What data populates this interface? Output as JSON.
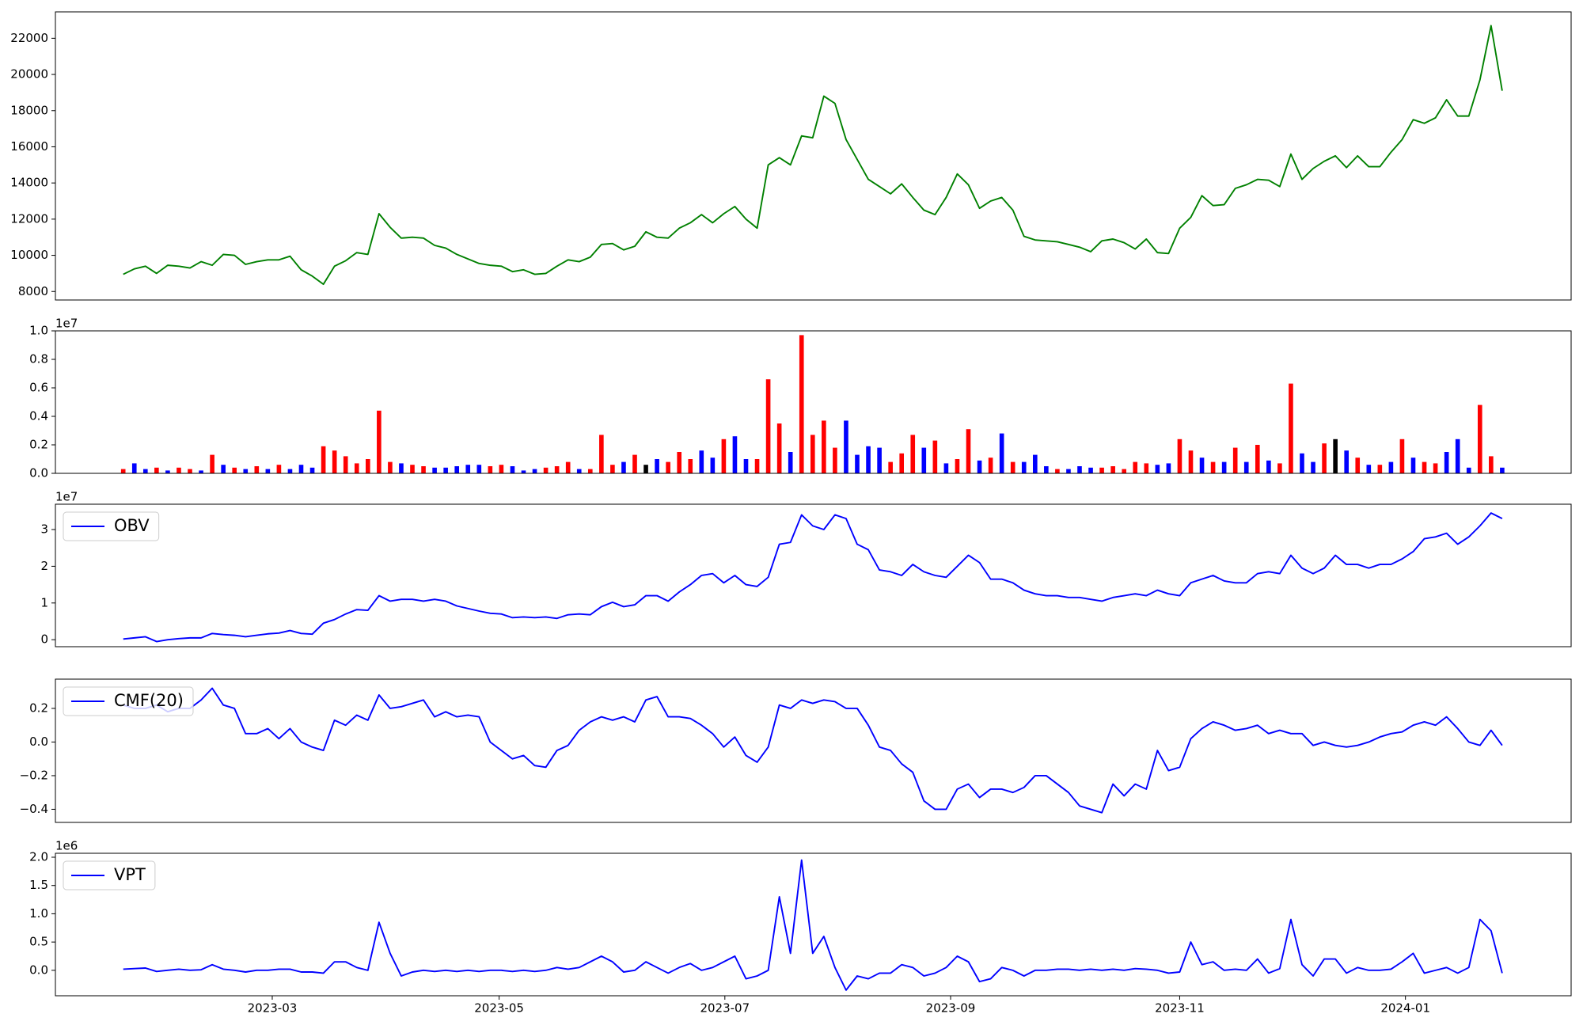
{
  "chart_data": [
    {
      "type": "line",
      "color": "green",
      "xlim": [
        -6.1,
        130.2
      ],
      "ylim": [
        7530,
        23460
      ],
      "yticks": [
        8000,
        10000,
        12000,
        14000,
        16000,
        18000,
        20000,
        22000
      ],
      "values": [
        8950,
        9250,
        9400,
        9000,
        9450,
        9400,
        9300,
        9650,
        9450,
        10050,
        10000,
        9500,
        9650,
        9750,
        9750,
        9950,
        9200,
        8850,
        8400,
        9400,
        9700,
        10150,
        10050,
        12300,
        11550,
        10950,
        11000,
        10950,
        10550,
        10400,
        10050,
        9800,
        9550,
        9450,
        9400,
        9100,
        9200,
        8950,
        9000,
        9400,
        9750,
        9650,
        9900,
        10600,
        10650,
        10300,
        10500,
        11300,
        11000,
        10950,
        11500,
        11800,
        12250,
        11800,
        12300,
        12700,
        12000,
        11500,
        15000,
        15400,
        15000,
        16600,
        16500,
        18800,
        18400,
        16400,
        15300,
        14200,
        13800,
        13400,
        13950,
        13200,
        12500,
        12250,
        13200,
        14500,
        13900,
        12600,
        13000,
        13200,
        12500,
        11050,
        10850,
        10800,
        10750,
        10600,
        10450,
        10200,
        10800,
        10900,
        10700,
        10350,
        10900,
        10150,
        10100,
        11500,
        12100,
        13300,
        12750,
        12800,
        13700,
        13900,
        14200,
        14150,
        13800,
        15600,
        14200,
        14800,
        15200,
        15500,
        14850,
        15500,
        14900,
        14900,
        15700,
        16400,
        17500,
        17300,
        17600,
        18600,
        17700,
        17700,
        19700,
        22700,
        19100
      ]
    },
    {
      "type": "bar",
      "offset_label": "1e7",
      "xlim": [
        -6.1,
        130.2
      ],
      "ylim": [
        0,
        1.0
      ],
      "yticks": [
        {
          "value": 0,
          "label": "0.0"
        },
        {
          "value": 0.2,
          "label": "0.2"
        },
        {
          "value": 0.4,
          "label": "0.4"
        },
        {
          "value": 0.6,
          "label": "0.6"
        },
        {
          "value": 0.8,
          "label": "0.8"
        },
        {
          "value": 1.0,
          "label": "1.0"
        }
      ],
      "values": [
        0.03,
        0.07,
        0.03,
        0.04,
        0.02,
        0.04,
        0.03,
        0.02,
        0.13,
        0.06,
        0.04,
        0.03,
        0.05,
        0.03,
        0.06,
        0.03,
        0.06,
        0.04,
        0.19,
        0.16,
        0.12,
        0.07,
        0.1,
        0.44,
        0.08,
        0.07,
        0.06,
        0.05,
        0.04,
        0.04,
        0.05,
        0.06,
        0.06,
        0.05,
        0.06,
        0.05,
        0.02,
        0.03,
        0.04,
        0.05,
        0.08,
        0.03,
        0.03,
        0.27,
        0.06,
        0.08,
        0.13,
        0.06,
        0.1,
        0.08,
        0.15,
        0.1,
        0.16,
        0.11,
        0.24,
        0.26,
        0.1,
        0.1,
        0.66,
        0.35,
        0.15,
        0.97,
        0.27,
        0.37,
        0.18,
        0.37,
        0.13,
        0.19,
        0.18,
        0.08,
        0.14,
        0.27,
        0.18,
        0.23,
        0.07,
        0.1,
        0.31,
        0.09,
        0.11,
        0.28,
        0.08,
        0.08,
        0.13,
        0.05,
        0.03,
        0.03,
        0.05,
        0.04,
        0.04,
        0.05,
        0.03,
        0.08,
        0.07,
        0.06,
        0.07,
        0.24,
        0.16,
        0.11,
        0.08,
        0.08,
        0.18,
        0.08,
        0.2,
        0.09,
        0.07,
        0.63,
        0.14,
        0.08,
        0.21,
        0.24,
        0.16,
        0.11,
        0.06,
        0.06,
        0.08,
        0.24,
        0.11,
        0.08,
        0.07,
        0.15,
        0.24,
        0.04,
        0.48,
        0.12,
        0.04
      ],
      "colors": [
        "red",
        "blue",
        "blue",
        "red",
        "blue",
        "red",
        "red",
        "blue",
        "red",
        "blue",
        "red",
        "blue",
        "red",
        "blue",
        "red",
        "blue",
        "blue",
        "blue",
        "red",
        "red",
        "red",
        "red",
        "red",
        "red",
        "red",
        "blue",
        "red",
        "red",
        "blue",
        "blue",
        "blue",
        "blue",
        "blue",
        "red",
        "red",
        "blue",
        "blue",
        "blue",
        "red",
        "red",
        "red",
        "blue",
        "red",
        "red",
        "red",
        "blue",
        "red",
        "black",
        "blue",
        "red",
        "red",
        "red",
        "blue",
        "blue",
        "red",
        "blue",
        "blue",
        "red",
        "red",
        "red",
        "blue",
        "red",
        "red",
        "red",
        "red",
        "blue",
        "blue",
        "blue",
        "blue",
        "red",
        "red",
        "red",
        "blue",
        "red",
        "blue",
        "red",
        "red",
        "blue",
        "red",
        "blue",
        "red",
        "blue",
        "blue",
        "blue",
        "red",
        "blue",
        "blue",
        "blue",
        "red",
        "red",
        "red",
        "red",
        "red",
        "blue",
        "blue",
        "red",
        "red",
        "blue",
        "red",
        "blue",
        "red",
        "blue",
        "red",
        "blue",
        "red",
        "red",
        "blue",
        "blue",
        "red",
        "black",
        "blue",
        "red",
        "blue",
        "red",
        "blue",
        "red",
        "blue",
        "red",
        "red",
        "blue",
        "blue",
        "blue",
        "red",
        "red",
        "blue"
      ]
    },
    {
      "type": "line",
      "offset_label": "1e7",
      "legend": "upper left",
      "xlim": [
        -6.1,
        130.2
      ],
      "ylim": [
        -0.19,
        3.69
      ],
      "yticks": [
        0,
        1,
        2,
        3
      ],
      "series": [
        {
          "name": "OBV",
          "color": "blue",
          "values": [
            0.02,
            0.05,
            0.08,
            -0.05,
            0.0,
            0.03,
            0.05,
            0.05,
            0.17,
            0.14,
            0.12,
            0.08,
            0.12,
            0.16,
            0.18,
            0.25,
            0.17,
            0.15,
            0.45,
            0.55,
            0.7,
            0.82,
            0.8,
            1.2,
            1.05,
            1.1,
            1.1,
            1.05,
            1.1,
            1.05,
            0.92,
            0.85,
            0.78,
            0.72,
            0.7,
            0.6,
            0.62,
            0.6,
            0.62,
            0.58,
            0.68,
            0.7,
            0.68,
            0.9,
            1.02,
            0.9,
            0.95,
            1.2,
            1.2,
            1.05,
            1.3,
            1.5,
            1.75,
            1.8,
            1.55,
            1.75,
            1.5,
            1.45,
            1.7,
            2.6,
            2.65,
            3.4,
            3.1,
            3.0,
            3.4,
            3.3,
            2.6,
            2.45,
            1.9,
            1.85,
            1.75,
            2.05,
            1.85,
            1.75,
            1.7,
            2.0,
            2.3,
            2.1,
            1.65,
            1.65,
            1.55,
            1.35,
            1.25,
            1.2,
            1.2,
            1.15,
            1.15,
            1.1,
            1.05,
            1.15,
            1.2,
            1.25,
            1.2,
            1.35,
            1.25,
            1.2,
            1.55,
            1.65,
            1.75,
            1.6,
            1.55,
            1.55,
            1.8,
            1.85,
            1.8,
            2.3,
            1.95,
            1.8,
            1.95,
            2.3,
            2.05,
            2.05,
            1.95,
            2.05,
            2.05,
            2.2,
            2.4,
            2.75,
            2.8,
            2.9,
            2.6,
            2.8,
            3.1,
            3.45,
            3.3
          ]
        }
      ]
    },
    {
      "type": "line",
      "legend": "upper left",
      "xlim": [
        -6.1,
        130.2
      ],
      "ylim": [
        -0.478,
        0.374
      ],
      "yticks": [
        {
          "value": -0.4,
          "label": "−0.4"
        },
        {
          "value": -0.2,
          "label": "−0.2"
        },
        {
          "value": 0,
          "label": "0.0"
        },
        0.2
      ],
      "series": [
        {
          "name": "CMF(20)",
          "color": "blue",
          "values": [
            0.22,
            0.2,
            0.2,
            0.22,
            0.18,
            0.2,
            0.2,
            0.25,
            0.32,
            0.22,
            0.2,
            0.05,
            0.05,
            0.08,
            0.02,
            0.08,
            0.0,
            -0.03,
            -0.05,
            0.13,
            0.1,
            0.16,
            0.13,
            0.28,
            0.2,
            0.21,
            0.23,
            0.25,
            0.15,
            0.18,
            0.15,
            0.16,
            0.15,
            0.0,
            -0.05,
            -0.1,
            -0.08,
            -0.14,
            -0.15,
            -0.05,
            -0.02,
            0.07,
            0.12,
            0.15,
            0.13,
            0.15,
            0.12,
            0.25,
            0.27,
            0.15,
            0.15,
            0.14,
            0.1,
            0.05,
            -0.03,
            0.03,
            -0.08,
            -0.12,
            -0.03,
            0.22,
            0.2,
            0.25,
            0.23,
            0.25,
            0.24,
            0.2,
            0.2,
            0.1,
            -0.03,
            -0.05,
            -0.13,
            -0.18,
            -0.35,
            -0.4,
            -0.4,
            -0.28,
            -0.25,
            -0.33,
            -0.28,
            -0.28,
            -0.3,
            -0.27,
            -0.2,
            -0.2,
            -0.25,
            -0.3,
            -0.38,
            -0.4,
            -0.42,
            -0.25,
            -0.32,
            -0.25,
            -0.28,
            -0.05,
            -0.17,
            -0.15,
            0.02,
            0.08,
            0.12,
            0.1,
            0.07,
            0.08,
            0.1,
            0.05,
            0.07,
            0.05,
            0.05,
            -0.02,
            0.0,
            -0.02,
            -0.03,
            -0.02,
            0.0,
            0.03,
            0.05,
            0.06,
            0.1,
            0.12,
            0.1,
            0.15,
            0.08,
            0.0,
            -0.02,
            0.07,
            -0.02
          ]
        }
      ]
    },
    {
      "type": "line",
      "offset_label": "1e6",
      "legend": "upper left",
      "xlim": [
        -6.1,
        130.2
      ],
      "ylim": [
        -0.45,
        2.07
      ],
      "yticks": [
        {
          "value": 0,
          "label": "0.0"
        },
        {
          "value": 0.5,
          "label": "0.5"
        },
        {
          "value": 1.0,
          "label": "1.0"
        },
        {
          "value": 1.5,
          "label": "1.5"
        },
        {
          "value": 2.0,
          "label": "2.0"
        }
      ],
      "xticks": [
        {
          "value": 13.4,
          "label": "2023-03"
        },
        {
          "value": 33.8,
          "label": "2023-05"
        },
        {
          "value": 54.1,
          "label": "2023-07"
        },
        {
          "value": 74.4,
          "label": "2023-09"
        },
        {
          "value": 95.0,
          "label": "2023-11"
        },
        {
          "value": 115.3,
          "label": "2024-01"
        }
      ],
      "series": [
        {
          "name": "VPT",
          "color": "blue",
          "values": [
            0.02,
            0.03,
            0.04,
            -0.02,
            0.0,
            0.02,
            0.0,
            0.01,
            0.1,
            0.02,
            0.0,
            -0.03,
            0.0,
            0.0,
            0.02,
            0.02,
            -0.03,
            -0.03,
            -0.05,
            0.15,
            0.15,
            0.05,
            0.0,
            0.85,
            0.3,
            -0.1,
            -0.03,
            0.0,
            -0.02,
            0.0,
            -0.02,
            0.0,
            -0.02,
            0.0,
            0.0,
            -0.02,
            0.0,
            -0.02,
            0.0,
            0.05,
            0.02,
            0.05,
            0.15,
            0.25,
            0.15,
            -0.03,
            0.0,
            0.15,
            0.05,
            -0.05,
            0.05,
            0.12,
            0.0,
            0.05,
            0.15,
            0.25,
            -0.15,
            -0.1,
            0.0,
            1.3,
            0.3,
            1.95,
            0.3,
            0.6,
            0.05,
            -0.35,
            -0.1,
            -0.15,
            -0.05,
            -0.05,
            0.1,
            0.05,
            -0.1,
            -0.05,
            0.05,
            0.25,
            0.15,
            -0.2,
            -0.15,
            0.05,
            0.0,
            -0.1,
            0.0,
            0.0,
            0.02,
            0.02,
            0.0,
            0.02,
            0.0,
            0.02,
            0.0,
            0.03,
            0.02,
            0.0,
            -0.05,
            -0.03,
            0.5,
            0.1,
            0.15,
            0.0,
            0.02,
            0.0,
            0.2,
            -0.05,
            0.03,
            0.9,
            0.1,
            -0.1,
            0.2,
            0.2,
            -0.05,
            0.05,
            0.0,
            0.0,
            0.02,
            0.15,
            0.3,
            -0.05,
            0.0,
            0.05,
            -0.05,
            0.05,
            0.9,
            0.7,
            -0.05
          ]
        }
      ]
    }
  ]
}
